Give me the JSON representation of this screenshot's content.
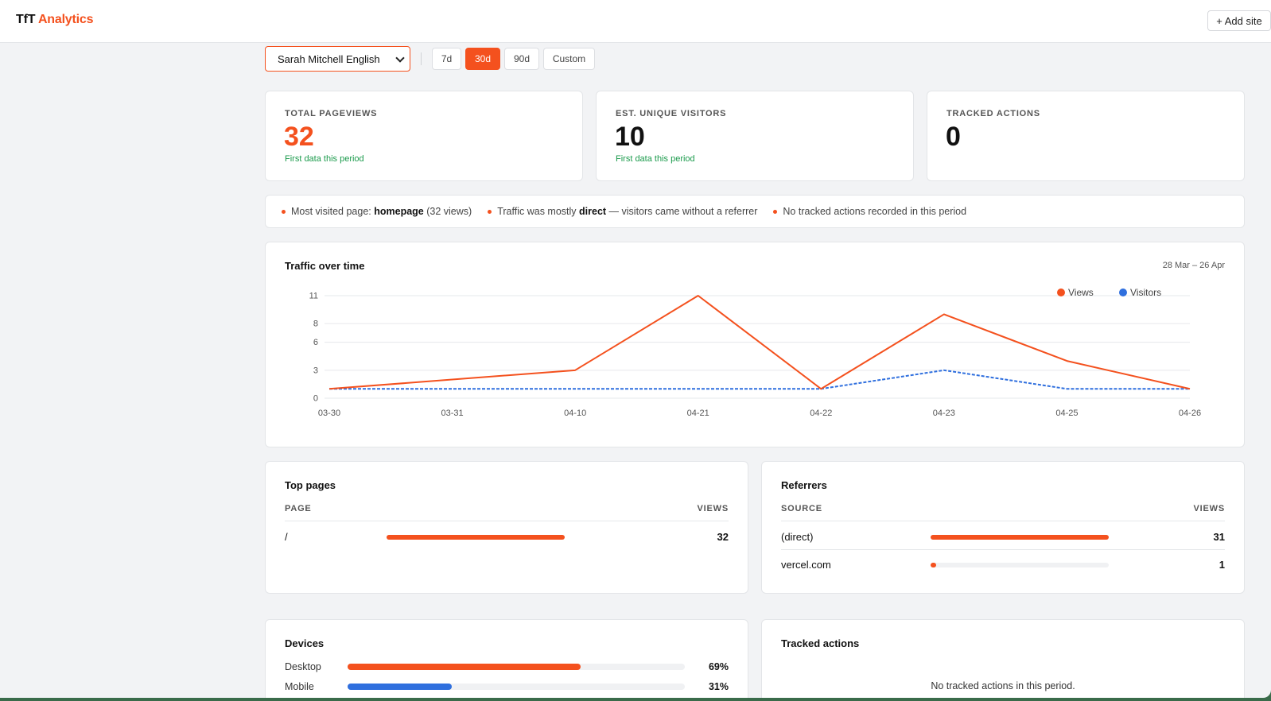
{
  "header": {
    "brand_part1": "TfT",
    "brand_part2": "Analytics",
    "add_site_label": "+ Add site"
  },
  "controls": {
    "site_selected": "Sarah Mitchell English",
    "ranges": [
      {
        "label": "7d",
        "active": false
      },
      {
        "label": "30d",
        "active": true
      },
      {
        "label": "90d",
        "active": false
      },
      {
        "label": "Custom",
        "active": false
      }
    ]
  },
  "stats": [
    {
      "label": "TOTAL PAGEVIEWS",
      "value": "32",
      "note": "First data this period"
    },
    {
      "label": "EST. UNIQUE VISITORS",
      "value": "10",
      "note": "First data this period"
    },
    {
      "label": "TRACKED ACTIONS",
      "value": "0",
      "note": ""
    }
  ],
  "insights": {
    "i1_prefix": "Most visited page:",
    "i1_bold": "homepage",
    "i1_suffix": "(32 views)",
    "i2_prefix": "Traffic was mostly",
    "i2_bold": "direct",
    "i2_suffix": "— visitors came without a referrer",
    "i3_text": "No tracked actions recorded in this period"
  },
  "traffic": {
    "title": "Traffic over time",
    "date_range": "28 Mar – 26 Apr"
  },
  "chart_data": {
    "type": "line",
    "x": [
      "03-30",
      "03-31",
      "04-10",
      "04-21",
      "04-22",
      "04-23",
      "04-25",
      "04-26"
    ],
    "series": [
      {
        "name": "Views",
        "color": "#f4511e",
        "values": [
          1,
          2,
          3,
          11,
          1,
          9,
          4,
          1
        ]
      },
      {
        "name": "Visitors",
        "color": "#2f6fde",
        "values": [
          1,
          1,
          1,
          1,
          1,
          3,
          1,
          1
        ]
      }
    ],
    "yticks": [
      0,
      3,
      6,
      8,
      11
    ],
    "ylim": [
      0,
      11
    ],
    "grid": true,
    "legend": "top-right"
  },
  "top_pages": {
    "title": "Top pages",
    "col1": "PAGE",
    "col2": "VIEWS",
    "rows": [
      {
        "label": "/",
        "value": "32",
        "fraction": 1.0
      }
    ]
  },
  "referrers": {
    "title": "Referrers",
    "col1": "SOURCE",
    "col2": "VIEWS",
    "rows": [
      {
        "label": "(direct)",
        "value": "31",
        "fraction": 1.0
      },
      {
        "label": "vercel.com",
        "value": "1",
        "fraction": 0.032
      }
    ]
  },
  "devices": {
    "title": "Devices",
    "rows": [
      {
        "label": "Desktop",
        "pct": "69%",
        "fraction": 0.69,
        "color": "#f4511e"
      },
      {
        "label": "Mobile",
        "pct": "31%",
        "fraction": 0.31,
        "color": "#2f6fde"
      }
    ]
  },
  "tracked_actions": {
    "title": "Tracked actions",
    "empty": "No tracked actions in this period."
  }
}
